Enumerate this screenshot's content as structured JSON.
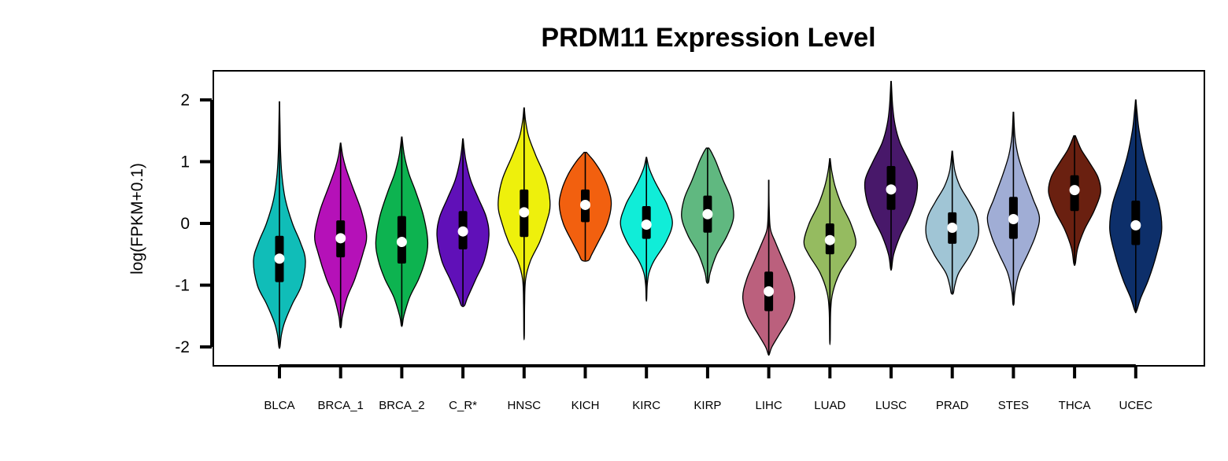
{
  "chart_data": {
    "type": "violin",
    "title": "PRDM11 Expression Level",
    "ylabel": "log(FPKM+0.1)",
    "xlabel": "",
    "ylim": [
      -2.3,
      2.5
    ],
    "yticks": [
      -2,
      -1,
      0,
      1,
      2
    ],
    "grid": false,
    "legend": "none",
    "categories": [
      "BLCA",
      "BRCA_1",
      "BRCA_2",
      "C_R*",
      "HNSC",
      "KICH",
      "KIRC",
      "KIRP",
      "LIHC",
      "LUAD",
      "LUSC",
      "PRAD",
      "STES",
      "THCA",
      "UCEC"
    ],
    "colors": [
      "#10BDB8",
      "#B511B8",
      "#0DB350",
      "#6010B8",
      "#EEF00C",
      "#F2600F",
      "#10EDD8",
      "#60B880",
      "#BB607D",
      "#95BB60",
      "#48186A",
      "#A0C5D5",
      "#A0ADD5",
      "#6A2010",
      "#0D2F6A"
    ],
    "series": [
      {
        "min": -2.0,
        "q1": -0.95,
        "median": -0.57,
        "q3": -0.2,
        "max": 1.97,
        "density": [
          [
            -2.0,
            0.02
          ],
          [
            -1.8,
            0.08
          ],
          [
            -1.6,
            0.2
          ],
          [
            -1.3,
            0.5
          ],
          [
            -1.0,
            0.85
          ],
          [
            -0.6,
            1.0
          ],
          [
            -0.3,
            0.8
          ],
          [
            0.0,
            0.5
          ],
          [
            0.4,
            0.22
          ],
          [
            0.8,
            0.09
          ],
          [
            1.2,
            0.04
          ],
          [
            1.6,
            0.02
          ],
          [
            1.97,
            0.005
          ]
        ]
      },
      {
        "min": -1.67,
        "q1": -0.55,
        "median": -0.24,
        "q3": 0.05,
        "max": 1.3,
        "density": [
          [
            -1.67,
            0.02
          ],
          [
            -1.5,
            0.07
          ],
          [
            -1.2,
            0.25
          ],
          [
            -0.9,
            0.55
          ],
          [
            -0.5,
            0.85
          ],
          [
            -0.2,
            1.0
          ],
          [
            0.2,
            0.8
          ],
          [
            0.6,
            0.45
          ],
          [
            0.9,
            0.2
          ],
          [
            1.1,
            0.08
          ],
          [
            1.3,
            0.01
          ]
        ]
      },
      {
        "min": -1.65,
        "q1": -0.65,
        "median": -0.3,
        "q3": 0.12,
        "max": 1.4,
        "density": [
          [
            -1.65,
            0.02
          ],
          [
            -1.5,
            0.08
          ],
          [
            -1.2,
            0.3
          ],
          [
            -0.9,
            0.65
          ],
          [
            -0.6,
            0.9
          ],
          [
            -0.3,
            1.0
          ],
          [
            0.1,
            0.85
          ],
          [
            0.5,
            0.55
          ],
          [
            0.8,
            0.28
          ],
          [
            1.1,
            0.1
          ],
          [
            1.4,
            0.01
          ]
        ]
      },
      {
        "min": -1.33,
        "q1": -0.42,
        "median": -0.13,
        "q3": 0.2,
        "max": 1.37,
        "density": [
          [
            -1.33,
            0.06
          ],
          [
            -1.2,
            0.18
          ],
          [
            -0.9,
            0.5
          ],
          [
            -0.6,
            0.82
          ],
          [
            -0.2,
            1.0
          ],
          [
            0.1,
            0.9
          ],
          [
            0.4,
            0.6
          ],
          [
            0.7,
            0.3
          ],
          [
            1.0,
            0.12
          ],
          [
            1.2,
            0.05
          ],
          [
            1.37,
            0.01
          ]
        ]
      },
      {
        "min": -1.82,
        "q1": -0.22,
        "median": 0.18,
        "q3": 0.55,
        "max": 1.87,
        "density": [
          [
            -1.82,
            0.01
          ],
          [
            -1.3,
            0.02
          ],
          [
            -0.9,
            0.06
          ],
          [
            -0.6,
            0.25
          ],
          [
            -0.3,
            0.6
          ],
          [
            0.0,
            0.85
          ],
          [
            0.3,
            1.0
          ],
          [
            0.7,
            0.85
          ],
          [
            1.1,
            0.45
          ],
          [
            1.4,
            0.18
          ],
          [
            1.65,
            0.06
          ],
          [
            1.87,
            0.01
          ]
        ]
      },
      {
        "min": -0.6,
        "q1": 0.02,
        "median": 0.3,
        "q3": 0.55,
        "max": 1.15,
        "density": [
          [
            -0.6,
            0.12
          ],
          [
            -0.5,
            0.25
          ],
          [
            -0.3,
            0.5
          ],
          [
            0.0,
            0.85
          ],
          [
            0.3,
            1.0
          ],
          [
            0.55,
            0.9
          ],
          [
            0.8,
            0.65
          ],
          [
            1.0,
            0.35
          ],
          [
            1.1,
            0.15
          ],
          [
            1.15,
            0.05
          ]
        ]
      },
      {
        "min": -1.23,
        "q1": -0.25,
        "median": -0.02,
        "q3": 0.28,
        "max": 1.07,
        "density": [
          [
            -1.23,
            0.01
          ],
          [
            -1.0,
            0.03
          ],
          [
            -0.8,
            0.1
          ],
          [
            -0.6,
            0.3
          ],
          [
            -0.3,
            0.75
          ],
          [
            0.0,
            1.0
          ],
          [
            0.3,
            0.8
          ],
          [
            0.5,
            0.55
          ],
          [
            0.7,
            0.3
          ],
          [
            0.9,
            0.1
          ],
          [
            1.07,
            0.01
          ]
        ]
      },
      {
        "min": -0.95,
        "q1": -0.15,
        "median": 0.15,
        "q3": 0.45,
        "max": 1.22,
        "density": [
          [
            -0.95,
            0.04
          ],
          [
            -0.8,
            0.1
          ],
          [
            -0.5,
            0.35
          ],
          [
            -0.2,
            0.75
          ],
          [
            0.1,
            1.0
          ],
          [
            0.4,
            0.9
          ],
          [
            0.7,
            0.6
          ],
          [
            1.0,
            0.32
          ],
          [
            1.15,
            0.15
          ],
          [
            1.22,
            0.05
          ]
        ]
      },
      {
        "min": -2.12,
        "q1": -1.42,
        "median": -1.1,
        "q3": -0.78,
        "max": 0.7,
        "density": [
          [
            -2.12,
            0.02
          ],
          [
            -2.0,
            0.12
          ],
          [
            -1.8,
            0.4
          ],
          [
            -1.5,
            0.82
          ],
          [
            -1.2,
            1.0
          ],
          [
            -0.9,
            0.85
          ],
          [
            -0.6,
            0.55
          ],
          [
            -0.3,
            0.25
          ],
          [
            -0.1,
            0.07
          ],
          [
            0.2,
            0.02
          ],
          [
            0.7,
            0.005
          ]
        ]
      },
      {
        "min": -1.9,
        "q1": -0.5,
        "median": -0.27,
        "q3": 0.0,
        "max": 1.05,
        "density": [
          [
            -1.9,
            0.01
          ],
          [
            -1.4,
            0.03
          ],
          [
            -1.1,
            0.12
          ],
          [
            -0.8,
            0.38
          ],
          [
            -0.5,
            0.82
          ],
          [
            -0.3,
            1.0
          ],
          [
            0.0,
            0.8
          ],
          [
            0.3,
            0.45
          ],
          [
            0.6,
            0.2
          ],
          [
            0.85,
            0.07
          ],
          [
            1.05,
            0.01
          ]
        ]
      },
      {
        "min": -0.73,
        "q1": 0.22,
        "median": 0.55,
        "q3": 0.93,
        "max": 2.3,
        "density": [
          [
            -0.73,
            0.02
          ],
          [
            -0.5,
            0.1
          ],
          [
            -0.2,
            0.35
          ],
          [
            0.1,
            0.7
          ],
          [
            0.4,
            0.95
          ],
          [
            0.7,
            1.0
          ],
          [
            1.0,
            0.7
          ],
          [
            1.3,
            0.35
          ],
          [
            1.6,
            0.15
          ],
          [
            1.9,
            0.06
          ],
          [
            2.3,
            0.01
          ]
        ]
      },
      {
        "min": -1.13,
        "q1": -0.33,
        "median": -0.07,
        "q3": 0.18,
        "max": 1.17,
        "density": [
          [
            -1.13,
            0.04
          ],
          [
            -1.0,
            0.1
          ],
          [
            -0.8,
            0.25
          ],
          [
            -0.5,
            0.7
          ],
          [
            -0.2,
            1.0
          ],
          [
            0.1,
            0.95
          ],
          [
            0.35,
            0.65
          ],
          [
            0.6,
            0.3
          ],
          [
            0.85,
            0.1
          ],
          [
            1.17,
            0.01
          ]
        ]
      },
      {
        "min": -1.3,
        "q1": -0.25,
        "median": 0.07,
        "q3": 0.43,
        "max": 1.8,
        "density": [
          [
            -1.3,
            0.02
          ],
          [
            -1.1,
            0.06
          ],
          [
            -0.8,
            0.22
          ],
          [
            -0.5,
            0.55
          ],
          [
            -0.2,
            0.85
          ],
          [
            0.1,
            1.0
          ],
          [
            0.4,
            0.75
          ],
          [
            0.8,
            0.4
          ],
          [
            1.1,
            0.18
          ],
          [
            1.4,
            0.06
          ],
          [
            1.8,
            0.01
          ]
        ]
      },
      {
        "min": -0.65,
        "q1": 0.2,
        "median": 0.54,
        "q3": 0.78,
        "max": 1.42,
        "density": [
          [
            -0.65,
            0.03
          ],
          [
            -0.4,
            0.12
          ],
          [
            -0.1,
            0.38
          ],
          [
            0.2,
            0.75
          ],
          [
            0.5,
            1.0
          ],
          [
            0.75,
            0.9
          ],
          [
            1.0,
            0.55
          ],
          [
            1.2,
            0.25
          ],
          [
            1.42,
            0.03
          ]
        ]
      },
      {
        "min": -1.42,
        "q1": -0.35,
        "median": -0.03,
        "q3": 0.37,
        "max": 2.0,
        "density": [
          [
            -1.42,
            0.03
          ],
          [
            -1.2,
            0.2
          ],
          [
            -0.9,
            0.5
          ],
          [
            -0.5,
            0.8
          ],
          [
            -0.1,
            1.0
          ],
          [
            0.3,
            0.9
          ],
          [
            0.7,
            0.6
          ],
          [
            1.1,
            0.32
          ],
          [
            1.5,
            0.13
          ],
          [
            1.8,
            0.05
          ],
          [
            2.0,
            0.01
          ]
        ]
      }
    ]
  }
}
